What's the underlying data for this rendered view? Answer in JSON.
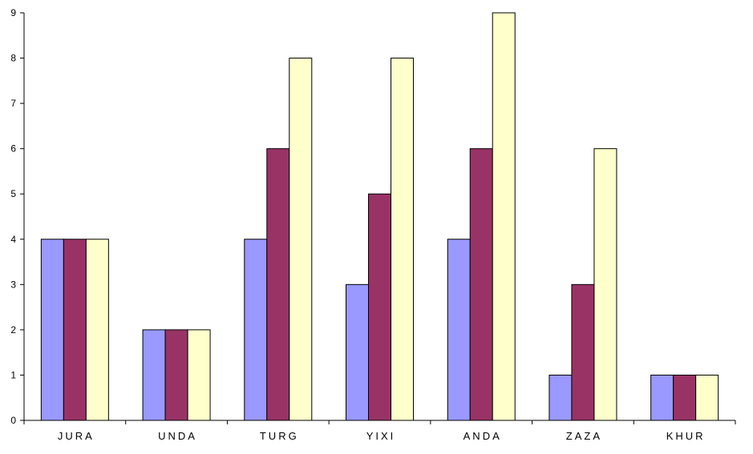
{
  "chart_data": {
    "type": "bar",
    "title": "",
    "xlabel": "",
    "ylabel": "",
    "ylim": [
      0,
      9
    ],
    "yticks": [
      "0",
      "1",
      "2",
      "3",
      "4",
      "5",
      "6",
      "7",
      "8",
      "9"
    ],
    "grid": false,
    "legend": "none",
    "categories": [
      "JURA",
      "UNDA",
      "TURG",
      "YIXI",
      "ANDA",
      "ZAZA",
      "KHUR"
    ],
    "series": [
      {
        "color": "#9999FF",
        "values": [
          4,
          2,
          4,
          3,
          4,
          1,
          1
        ]
      },
      {
        "color": "#993366",
        "values": [
          4,
          2,
          6,
          5,
          6,
          3,
          1
        ]
      },
      {
        "color": "#FFFFCC",
        "values": [
          4,
          2,
          8,
          8,
          9,
          6,
          1
        ]
      }
    ]
  }
}
